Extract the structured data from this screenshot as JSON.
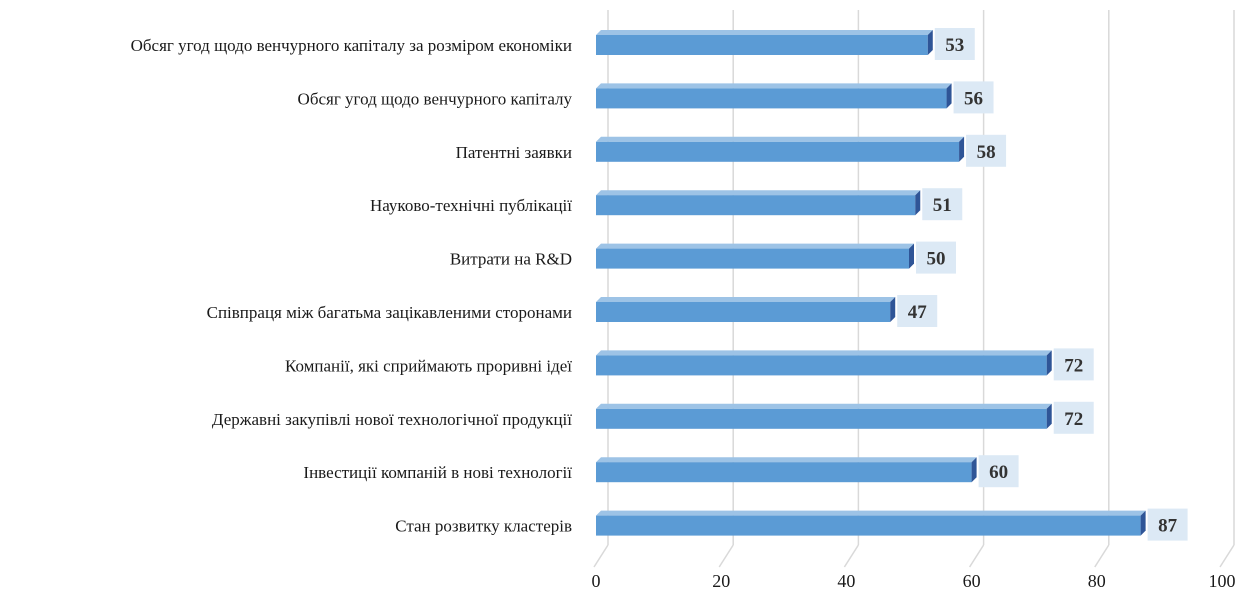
{
  "chart_data": {
    "type": "bar",
    "orientation": "horizontal",
    "categories": [
      "Обсяг угод щодо венчурного капіталу  за розміром економіки",
      "Обсяг угод щодо венчурного капіталу",
      "Патентні  заявки",
      "Науково-технічні публікації",
      "Витрати  на  R&D",
      "Співпраця  між багатьма зацікавленими  сторонами",
      "Компанії, які сприймають  проривні  ідеї",
      "Державні  закупівлі  нової технологічної продукції",
      "Інвестиції  компаній  в нові технології",
      "Стан  розвитку  кластерів"
    ],
    "values": [
      53,
      56,
      58,
      51,
      50,
      47,
      72,
      72,
      60,
      87
    ],
    "xlim": [
      0,
      100
    ],
    "xticks": [
      0,
      20,
      40,
      60,
      80,
      100
    ],
    "grid": true,
    "legend": "none",
    "title": "",
    "xlabel": "",
    "ylabel": "",
    "colors": {
      "bar_front": "#5b9bd5",
      "bar_top": "#9dc3e6",
      "bar_side": "#2f5597",
      "label_bg": "#dce9f5",
      "grid": "#d9d9d9"
    }
  }
}
